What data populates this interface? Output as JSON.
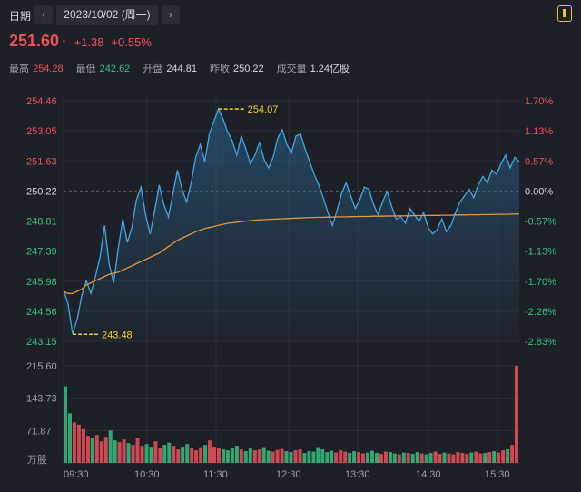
{
  "header": {
    "date_label": "日期",
    "prev_icon": "chevron-left-icon",
    "next_icon": "chevron-right-icon",
    "date_value": "2023/10/02 (周一)",
    "menu_icon": "menu-icon"
  },
  "quote": {
    "price": "251.60",
    "arrow": "↑",
    "change": "+1.38",
    "change_pct": "+0.55%"
  },
  "stats": [
    {
      "label": "最高",
      "value": "254.28",
      "tone": "red"
    },
    {
      "label": "最低",
      "value": "242.62",
      "tone": "green"
    },
    {
      "label": "开盘",
      "value": "244.81",
      "tone": "white"
    },
    {
      "label": "昨收",
      "value": "250.22",
      "tone": "white"
    },
    {
      "label": "成交量",
      "value": "1.24亿股",
      "tone": "white"
    }
  ],
  "colors": {
    "up": "#f0515a",
    "down": "#35c07f",
    "price_line": "#3ea8e5",
    "avg_line": "#e8963a",
    "marker": "#f2d22e",
    "background": "#1e2027"
  },
  "chart_data": {
    "type": "line",
    "y_left_ticks": [
      "254.46",
      "253.05",
      "251.63",
      "250.22",
      "248.81",
      "247.39",
      "245.98",
      "244.56",
      "243.15"
    ],
    "y_right_ticks": [
      "1.70%",
      "1.13%",
      "0.57%",
      "0.00%",
      "-0.57%",
      "-1.13%",
      "-1.70%",
      "-2.26%",
      "-2.83%"
    ],
    "ylim": [
      243.15,
      254.46
    ],
    "reference": 250.22,
    "x_ticks": [
      "09:30",
      "10:30",
      "11:30",
      "12:30",
      "13:30",
      "14:30",
      "15:30"
    ],
    "high_marker": "254.07",
    "low_marker": "243.48",
    "series": [
      {
        "name": "price",
        "values": [
          245.6,
          244.9,
          243.5,
          244.2,
          245.3,
          246.0,
          245.4,
          246.2,
          247.1,
          248.6,
          246.8,
          245.9,
          247.5,
          248.9,
          247.8,
          248.5,
          249.8,
          250.4,
          249.1,
          248.2,
          249.3,
          250.5,
          249.6,
          249.0,
          250.1,
          251.2,
          250.3,
          249.7,
          250.6,
          251.8,
          252.4,
          251.6,
          252.9,
          253.5,
          254.07,
          253.6,
          253.0,
          252.6,
          251.9,
          252.8,
          252.2,
          251.5,
          251.9,
          252.5,
          251.7,
          251.3,
          251.8,
          252.7,
          253.1,
          252.4,
          252.0,
          252.8,
          252.9,
          252.2,
          251.6,
          251.0,
          250.5,
          249.9,
          249.2,
          248.6,
          249.3,
          250.1,
          250.6,
          250.0,
          249.4,
          249.8,
          250.4,
          250.3,
          249.6,
          249.1,
          249.7,
          250.2,
          249.5,
          248.9,
          249.0,
          248.7,
          249.4,
          249.1,
          248.8,
          249.2,
          248.5,
          248.2,
          248.4,
          248.9,
          248.3,
          248.6,
          249.2,
          249.7,
          250.0,
          250.3,
          249.9,
          250.5,
          250.9,
          250.6,
          251.2,
          251.0,
          251.5,
          251.9,
          251.3,
          251.8,
          251.6
        ]
      },
      {
        "name": "average",
        "values": [
          245.5,
          245.4,
          245.4,
          245.5,
          245.6,
          245.8,
          245.9,
          246.0,
          246.1,
          246.2,
          246.3,
          246.35,
          246.4,
          246.5,
          246.6,
          246.7,
          246.8,
          246.9,
          247.0,
          247.1,
          247.2,
          247.3,
          247.45,
          247.6,
          247.75,
          247.9,
          248.0,
          248.1,
          248.2,
          248.3,
          248.38,
          248.45,
          248.5,
          248.55,
          248.6,
          248.65,
          248.7,
          248.72,
          248.75,
          248.78,
          248.8,
          248.82,
          248.84,
          248.86,
          248.87,
          248.88,
          248.89,
          248.9,
          248.91,
          248.92,
          248.93,
          248.94,
          248.95,
          248.96,
          248.97,
          248.97,
          248.98,
          248.98,
          248.99,
          248.99,
          249.0,
          249.0,
          249.0,
          249.01,
          249.01,
          249.02,
          249.02,
          249.02,
          249.03,
          249.03,
          249.03,
          249.04,
          249.04,
          249.04,
          249.05,
          249.05,
          249.05,
          249.06,
          249.06,
          249.06,
          249.07,
          249.07,
          249.07,
          249.08,
          249.08,
          249.08,
          249.09,
          249.09,
          249.09,
          249.1,
          249.1,
          249.1,
          249.11,
          249.11,
          249.11,
          249.12,
          249.12,
          249.12,
          249.13,
          249.13,
          249.14
        ]
      }
    ],
    "volume": {
      "unit": "万股",
      "ticks": [
        "215.60",
        "143.73",
        "71.87"
      ],
      "ylim": [
        0,
        215.6
      ],
      "values": [
        170,
        110,
        90,
        85,
        75,
        60,
        55,
        62,
        48,
        58,
        72,
        50,
        46,
        52,
        44,
        40,
        55,
        38,
        42,
        36,
        48,
        34,
        40,
        45,
        38,
        30,
        36,
        42,
        33,
        28,
        35,
        40,
        50,
        36,
        32,
        30,
        28,
        34,
        38,
        30,
        26,
        32,
        28,
        30,
        35,
        27,
        25,
        29,
        31,
        26,
        24,
        28,
        30,
        22,
        26,
        25,
        35,
        30,
        24,
        27,
        23,
        28,
        25,
        22,
        26,
        24,
        21,
        23,
        27,
        22,
        20,
        25,
        24,
        21,
        19,
        23,
        22,
        20,
        24,
        21,
        19,
        22,
        25,
        20,
        23,
        21,
        19,
        24,
        22,
        20,
        23,
        25,
        21,
        22,
        24,
        26,
        23,
        28,
        30,
        40,
        220
      ],
      "up": [
        false,
        false,
        true,
        true,
        true,
        true,
        false,
        true,
        true,
        true,
        false,
        false,
        true,
        true,
        false,
        true,
        true,
        true,
        false,
        false,
        true,
        true,
        false,
        false,
        true,
        true,
        false,
        false,
        true,
        true,
        true,
        false,
        true,
        true,
        true,
        false,
        false,
        false,
        false,
        true,
        false,
        false,
        true,
        true,
        false,
        false,
        true,
        true,
        true,
        false,
        false,
        true,
        true,
        false,
        false,
        false,
        false,
        false,
        false,
        false,
        true,
        true,
        true,
        false,
        false,
        true,
        true,
        false,
        false,
        false,
        true,
        true,
        false,
        false,
        true,
        false,
        true,
        false,
        false,
        true,
        false,
        false,
        true,
        true,
        false,
        true,
        true,
        true,
        true,
        true,
        false,
        true,
        true,
        false,
        true,
        false,
        true,
        true,
        false,
        true,
        true
      ]
    }
  }
}
